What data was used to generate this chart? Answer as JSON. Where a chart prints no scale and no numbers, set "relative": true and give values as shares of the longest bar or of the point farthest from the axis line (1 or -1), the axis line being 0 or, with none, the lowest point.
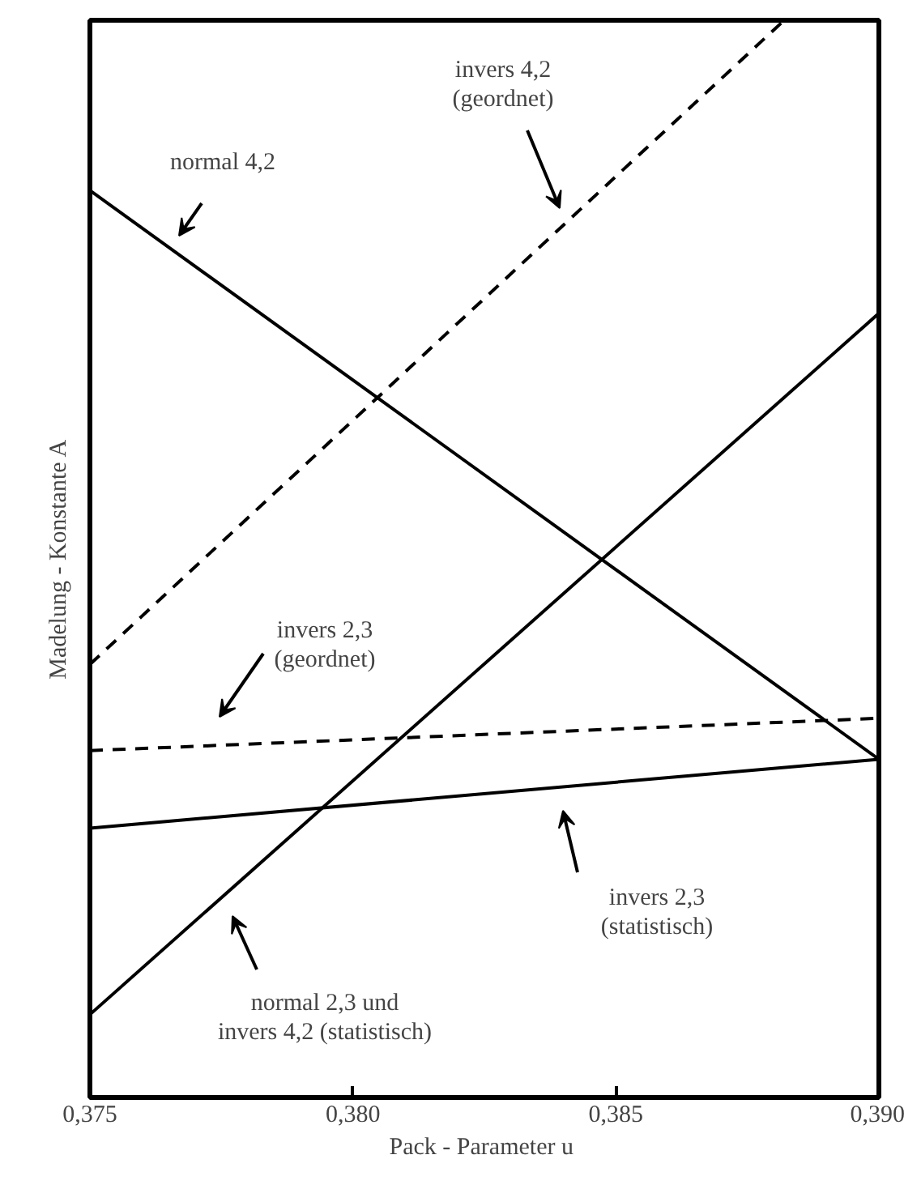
{
  "chart_data": {
    "type": "line",
    "relative": true,
    "xlabel": "Pack - Parameter  u",
    "ylabel": "Madelung - Konstante A",
    "xlim": [
      0.375,
      0.39
    ],
    "xticks": [
      {
        "value": 0.375,
        "label": "0,375"
      },
      {
        "value": 0.38,
        "label": "0,380"
      },
      {
        "value": 0.385,
        "label": "0,385"
      },
      {
        "value": 0.39,
        "label": "0,390"
      }
    ],
    "grid": false,
    "marker": "none",
    "series": [
      {
        "color": "#000000",
        "line_style": "solid",
        "x": [
          0.375,
          0.39
        ],
        "values": [
          0.842,
          0.314
        ]
      },
      {
        "color": "#000000",
        "line_style": "dashed",
        "x": [
          0.375,
          0.3882
        ],
        "values": [
          0.402,
          1
        ]
      },
      {
        "color": "#000000",
        "line_style": "solid",
        "x": [
          0.375,
          0.39
        ],
        "values": [
          0.077,
          0.728
        ]
      },
      {
        "color": "#000000",
        "line_style": "dashed",
        "x": [
          0.375,
          0.39
        ],
        "values": [
          0.322,
          0.352
        ]
      },
      {
        "color": "#000000",
        "line_style": "solid",
        "x": [
          0.375,
          0.39
        ],
        "values": [
          0.25,
          0.314
        ]
      }
    ],
    "annotations": [
      "normal 4,2",
      "invers 4,2\n(geordnet)",
      "invers 2,3\n(geordnet)",
      "invers 2,3\n(statistisch)",
      "normal 2,3 und\ninvers 4,2 (statistisch)"
    ]
  }
}
